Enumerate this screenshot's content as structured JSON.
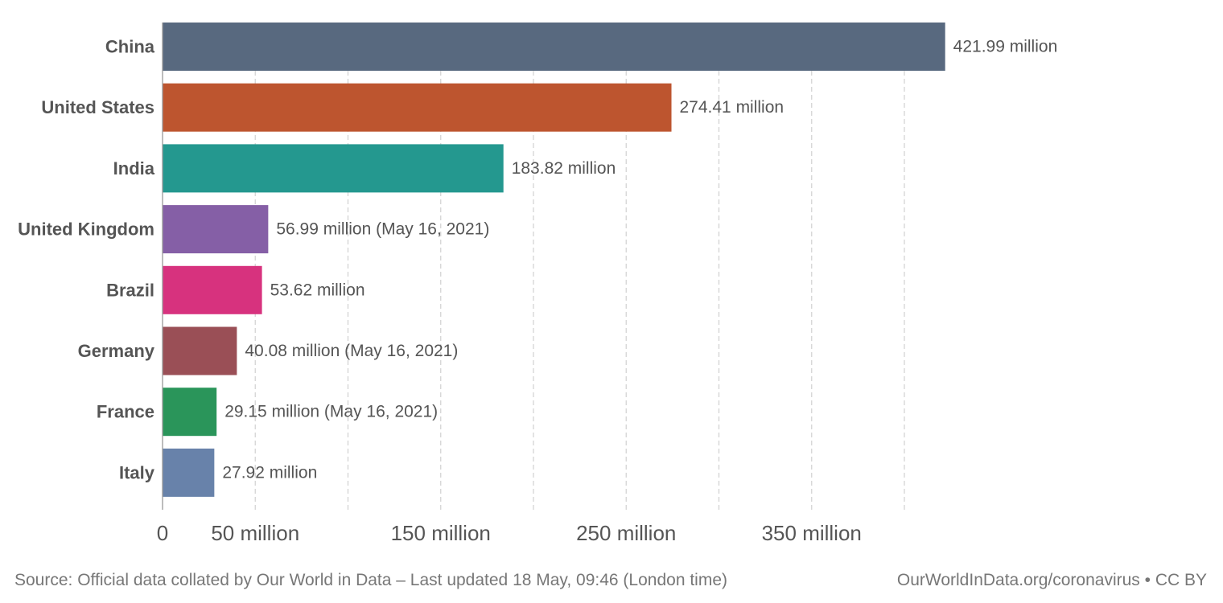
{
  "chart_data": {
    "type": "bar",
    "orientation": "horizontal",
    "categories": [
      "China",
      "United States",
      "India",
      "United Kingdom",
      "Brazil",
      "Germany",
      "France",
      "Italy"
    ],
    "values": [
      421.99,
      274.41,
      183.82,
      56.99,
      53.62,
      40.08,
      29.15,
      27.92
    ],
    "value_labels": [
      "421.99 million",
      "274.41 million",
      "183.82 million",
      "56.99 million (May 16, 2021)",
      "53.62 million",
      "40.08 million (May 16, 2021)",
      "29.15 million (May 16, 2021)",
      "27.92 million"
    ],
    "colors": [
      "#58697f",
      "#bd552f",
      "#24988f",
      "#855fa6",
      "#d7327e",
      "#9a4f56",
      "#2a955a",
      "#6882aa"
    ],
    "xlim": [
      0,
      450
    ],
    "x_ticks": [
      {
        "value": 0,
        "label": "0"
      },
      {
        "value": 50,
        "label": "50 million"
      },
      {
        "value": 150,
        "label": "150 million"
      },
      {
        "value": 250,
        "label": "250 million"
      },
      {
        "value": 350,
        "label": "350 million"
      }
    ],
    "gridlines": [
      50,
      100,
      150,
      200,
      250,
      300,
      350,
      400
    ],
    "grid": true,
    "title": "",
    "xlabel": "",
    "ylabel": ""
  },
  "footer": {
    "source": "Source: Official data collated by Our World in Data – Last updated 18 May, 09:46 (London time)",
    "credit": "OurWorldInData.org/coronavirus • CC BY"
  }
}
